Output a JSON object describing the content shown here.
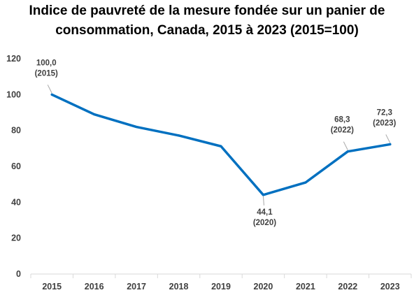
{
  "chart_data": {
    "type": "line",
    "title_line1": "Indice de pauvreté de la mesure fondée sur un panier de",
    "title_line2": "consommation, Canada, 2015 à 2023 (2015=100)",
    "xlabel": "",
    "ylabel": "",
    "categories": [
      "2015",
      "2016",
      "2017",
      "2018",
      "2019",
      "2020",
      "2021",
      "2022",
      "2023"
    ],
    "series": [
      {
        "values": [
          100.0,
          89.0,
          82.0,
          77.2,
          71.2,
          44.1,
          51.0,
          68.3,
          72.3
        ],
        "color": "#0070C0"
      }
    ],
    "ylim": [
      0,
      120
    ],
    "yticks": [
      "0",
      "20",
      "40",
      "60",
      "80",
      "100",
      "120"
    ],
    "grid": false,
    "legend": "none",
    "annotations": [
      {
        "index": 0,
        "value_text": "100,0",
        "year_text": "(2015)",
        "placement": "above"
      },
      {
        "index": 5,
        "value_text": "44,1",
        "year_text": "(2020)",
        "placement": "below"
      },
      {
        "index": 7,
        "value_text": "68,3",
        "year_text": "(2022)",
        "placement": "above"
      },
      {
        "index": 8,
        "value_text": "72,3",
        "year_text": "(2023)",
        "placement": "above"
      }
    ],
    "axis_color": "#D9D9D9",
    "leader_color": "#A6A6A6"
  }
}
